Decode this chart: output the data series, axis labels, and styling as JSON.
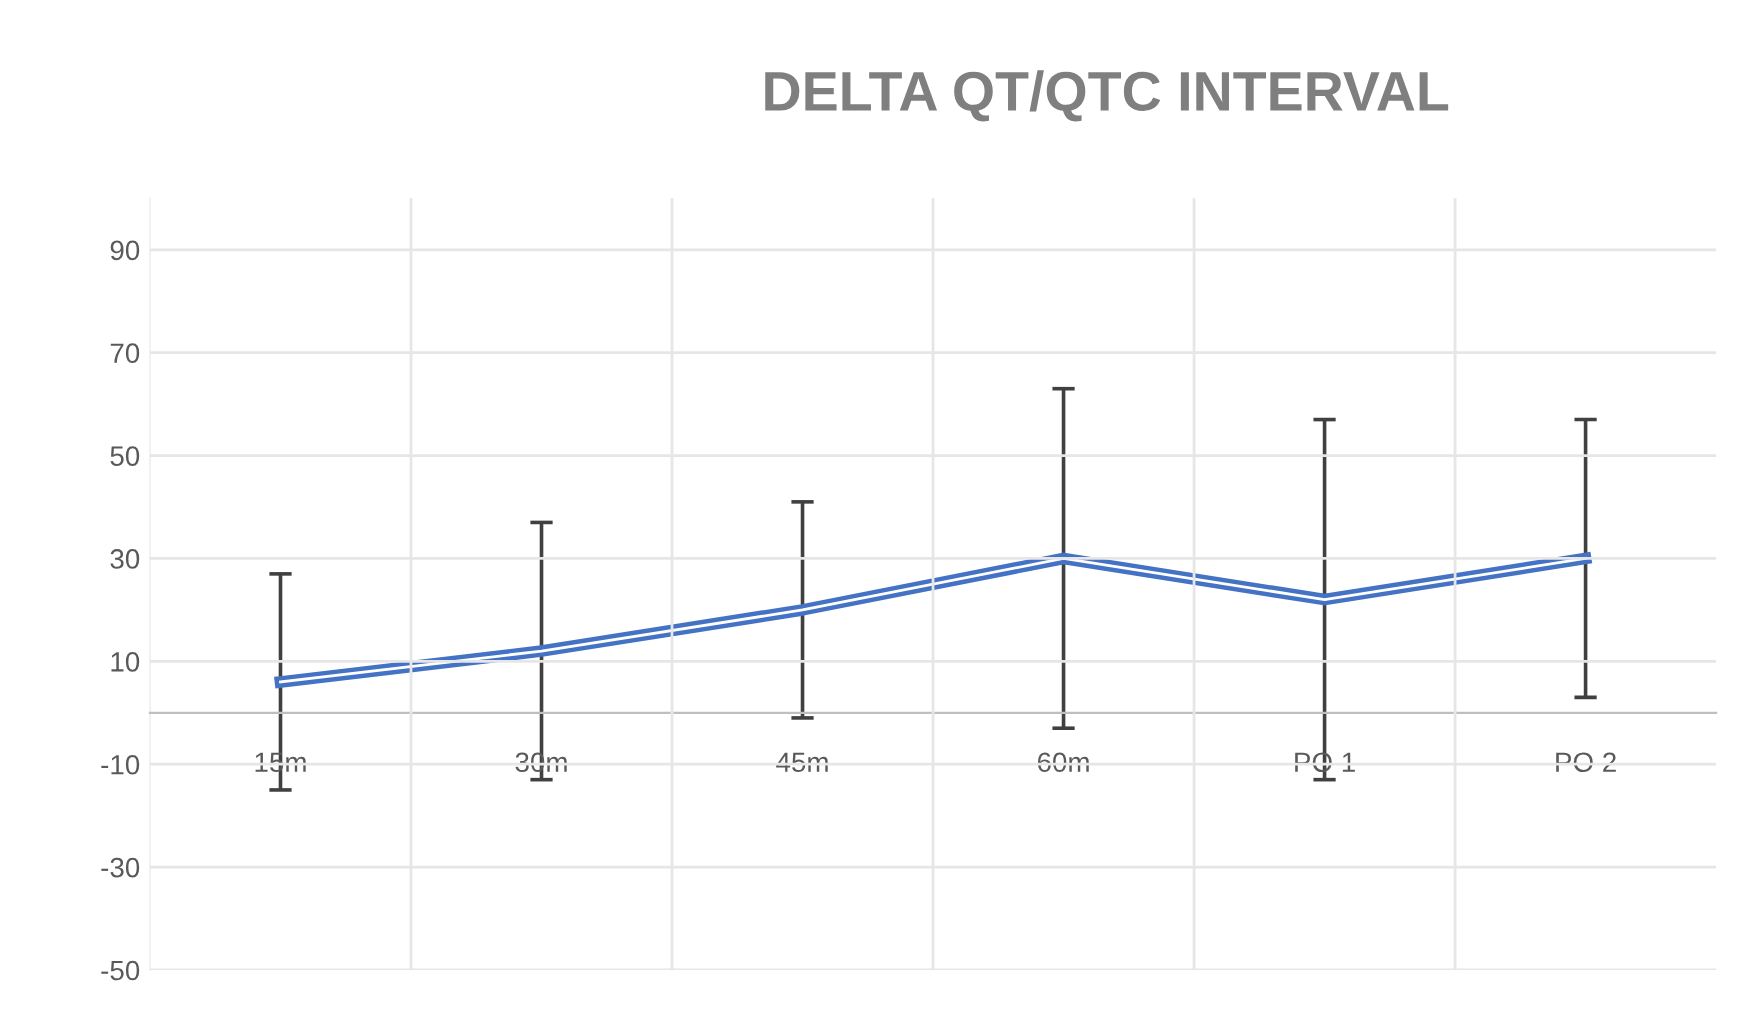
{
  "chart_data": {
    "type": "line",
    "title": "DELTA QT/QTC INTERVAL",
    "categories": [
      "15m",
      "30m",
      "45m",
      "60m",
      "PO 1",
      "PO 2"
    ],
    "series": [
      {
        "color": "#4472c4",
        "values": [
          6,
          12,
          20,
          30,
          22,
          30
        ],
        "errors": [
          21,
          25,
          21,
          33,
          35,
          27
        ]
      }
    ],
    "ylim": [
      -50,
      100
    ],
    "yticks": [
      -50,
      -30,
      -10,
      10,
      30,
      50,
      70,
      90
    ],
    "grid": true,
    "marker": "none",
    "line_style": "solid"
  }
}
